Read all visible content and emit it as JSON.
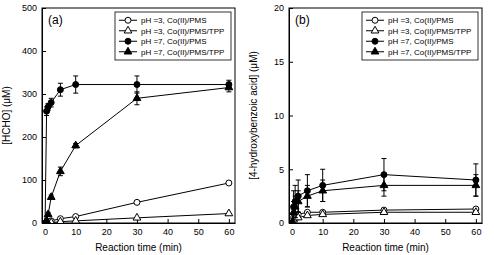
{
  "chart_data": [
    {
      "type": "line",
      "title": "(a)",
      "x_label": "Reaction time (min)",
      "y_label": "[HCHO] (μM)",
      "x": [
        0,
        0.5,
        1,
        2,
        5,
        10,
        30,
        60
      ],
      "xlim": [
        -1,
        62
      ],
      "xticks": [
        0,
        10,
        20,
        30,
        40,
        50,
        60
      ],
      "ylim": [
        0,
        500
      ],
      "yticks": [
        0,
        100,
        200,
        300,
        400,
        500
      ],
      "legend": "upper right",
      "series": [
        {
          "name": "pH =3, Co(II)/PMS",
          "color": "#000000",
          "marker": "circle-open",
          "values": [
            0,
            0,
            2,
            5,
            10,
            15,
            48,
            93
          ]
        },
        {
          "name": "pH =3, Co(II)/PMS/TPP",
          "color": "#000000",
          "marker": "triangle-open",
          "values": [
            0,
            0,
            0,
            1,
            3,
            5,
            12,
            22
          ]
        },
        {
          "name": "pH =7, Co(II)/PMS",
          "color": "#000000",
          "marker": "circle",
          "values": [
            0,
            260,
            270,
            280,
            310,
            322,
            322,
            322
          ],
          "errors": [
            0,
            10,
            8,
            10,
            15,
            20,
            20,
            10
          ]
        },
        {
          "name": "pH =7, Co(II)/PMS/TPP",
          "color": "#000000",
          "marker": "triangle",
          "values": [
            0,
            5,
            20,
            60,
            120,
            180,
            290,
            315
          ],
          "errors": [
            0,
            3,
            5,
            5,
            10,
            5,
            15,
            10
          ]
        }
      ]
    },
    {
      "type": "line",
      "title": "(b)",
      "x_label": "Reaction time (min)",
      "y_label": "[4-hydroxybenzoic acid] (μM)",
      "x": [
        0,
        0.5,
        1,
        2,
        5,
        10,
        30,
        60
      ],
      "xlim": [
        -1,
        62
      ],
      "xticks": [
        0,
        10,
        20,
        30,
        40,
        50,
        60
      ],
      "ylim": [
        0,
        20
      ],
      "yticks": [
        0,
        5,
        10,
        15,
        20
      ],
      "legend": "upper right",
      "series": [
        {
          "name": "pH =3, Co(II)/PMS",
          "color": "#000000",
          "marker": "circle-open",
          "values": [
            0,
            0.5,
            0.5,
            0.8,
            1,
            1,
            1.2,
            1.3
          ]
        },
        {
          "name": "pH =3, Co(II)/PMS/TPP",
          "color": "#000000",
          "marker": "triangle-open",
          "values": [
            0,
            0.3,
            0.5,
            0.5,
            0.7,
            0.8,
            1,
            1
          ]
        },
        {
          "name": "pH =7, Co(II)/PMS",
          "color": "#000000",
          "marker": "circle",
          "values": [
            0,
            1.5,
            2,
            2.5,
            3,
            3.5,
            4.5,
            4
          ],
          "errors": [
            0,
            1.5,
            1.5,
            1.5,
            1.5,
            1.5,
            1.5,
            1.5
          ]
        },
        {
          "name": "pH =7, Co(II)/PMS/TPP",
          "color": "#000000",
          "marker": "triangle",
          "values": [
            0,
            1,
            1.5,
            2,
            2.5,
            3,
            3.5,
            3.5
          ],
          "errors": [
            0,
            1,
            1,
            1,
            1,
            1,
            1,
            1
          ]
        }
      ]
    }
  ]
}
